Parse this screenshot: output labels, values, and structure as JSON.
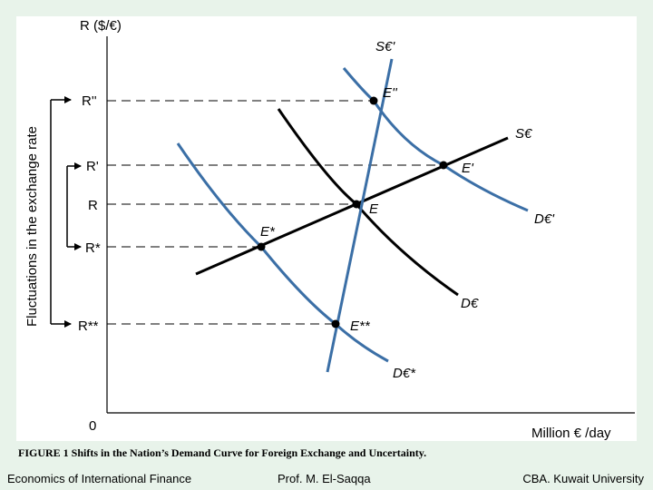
{
  "diagram": {
    "y_axis_label": "R ($/€)",
    "x_axis_label": "Million € /day",
    "origin_label": "0",
    "side_label": "Fluctuations in the exchange rate",
    "rate_labels": [
      "R''",
      "R'",
      "R",
      "R*",
      "R**"
    ],
    "curve_labels": {
      "s_euro": "S€",
      "s_euro_prime": "S€'",
      "d_euro": "D€",
      "d_euro_prime": "D€'",
      "d_euro_star": "D€*"
    },
    "point_labels": {
      "e": "E",
      "e_prime": "E'",
      "e_double_prime": "E''",
      "e_star": "E*",
      "e_double_star": "E**"
    },
    "colors": {
      "black_curves": "#000000",
      "blue_curves": "#3b6fa6",
      "background": "#e8f3ea"
    }
  },
  "caption": "FIGURE 1 Shifts in the Nation’s Demand Curve for Foreign Exchange and Uncertainty.",
  "footer": {
    "left": "Economics of International Finance",
    "center": "Prof. M. El-Saqqa",
    "right": "CBA. Kuwait University"
  }
}
